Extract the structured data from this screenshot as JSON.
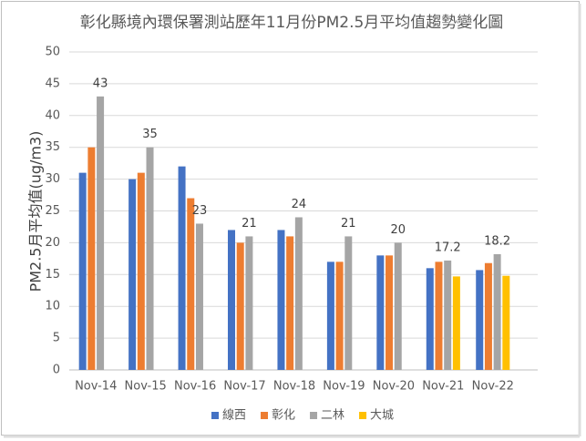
{
  "chart_data": {
    "type": "bar",
    "title": "彰化縣境內環保署測站歷年11月份PM2.5月平均值趨勢變化圖",
    "y_label": "PM2.5月平均值(ug/m3)",
    "categories": [
      "Nov-14",
      "Nov-15",
      "Nov-16",
      "Nov-17",
      "Nov-18",
      "Nov-19",
      "Nov-20",
      "Nov-21",
      "Nov-22"
    ],
    "series": [
      {
        "name": "線西",
        "color": "#4472c4",
        "values": [
          31,
          30,
          32,
          22,
          22,
          17,
          18,
          16,
          15.7
        ]
      },
      {
        "name": "彰化",
        "color": "#ed7d31",
        "values": [
          35,
          31,
          27,
          20,
          21,
          17,
          18,
          17,
          16.8
        ]
      },
      {
        "name": "二林",
        "color": "#a5a5a5",
        "values": [
          43,
          35,
          23,
          21,
          24,
          21,
          20,
          17.2,
          18.2
        ],
        "show_labels": true
      },
      {
        "name": "大城",
        "color": "#ffc000",
        "values": [
          null,
          null,
          null,
          null,
          null,
          null,
          null,
          14.7,
          14.8
        ]
      }
    ],
    "ylim": [
      0,
      50
    ],
    "yticks": [
      0,
      5,
      10,
      15,
      20,
      25,
      30,
      35,
      40,
      45,
      50
    ],
    "grid": true,
    "legend": "bottom"
  }
}
